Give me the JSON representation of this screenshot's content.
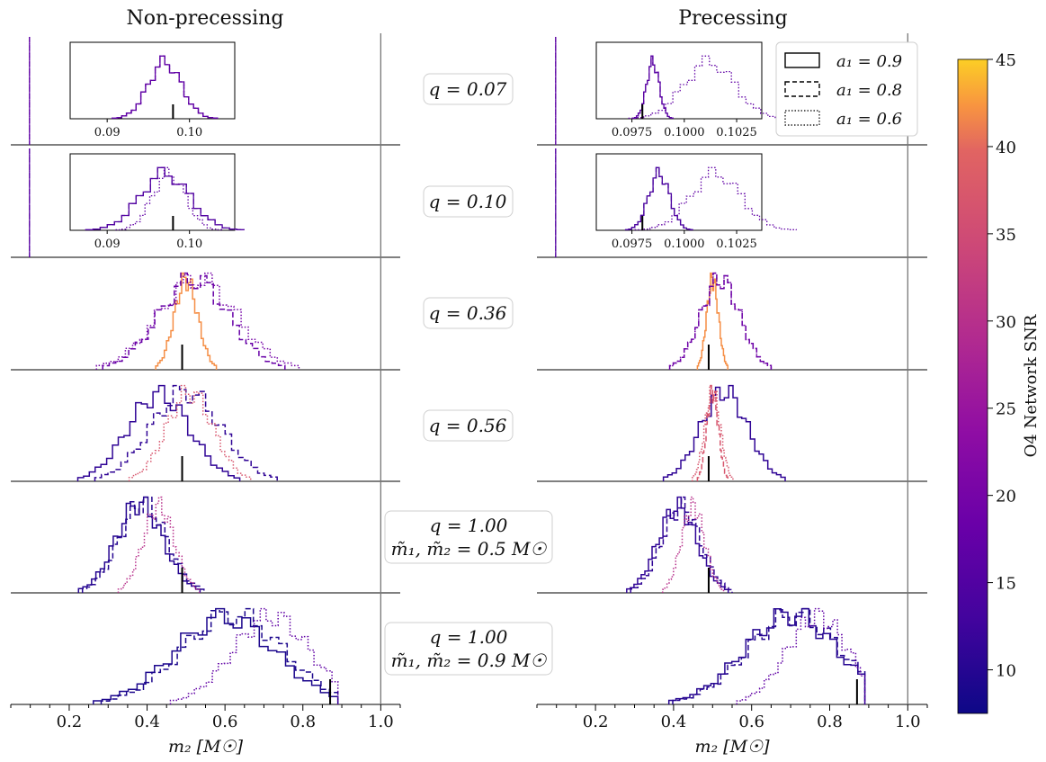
{
  "columns": [
    {
      "title": "Non-precessing"
    },
    {
      "title": "Precessing"
    }
  ],
  "rows": [
    {
      "label_line1": "q = 0.07",
      "label_line2": ""
    },
    {
      "label_line1": "q = 0.10",
      "label_line2": ""
    },
    {
      "label_line1": "q = 0.36",
      "label_line2": ""
    },
    {
      "label_line1": "q = 0.56",
      "label_line2": ""
    },
    {
      "label_line1": "q = 1.00",
      "label_line2": "m̃₁, m̃₂ = 0.5 M☉"
    },
    {
      "label_line1": "q = 1.00",
      "label_line2": "m̃₁, m̃₂ = 0.9 M☉"
    }
  ],
  "legend": {
    "entries": [
      {
        "label": "a₁ = 0.9",
        "dash": "solid"
      },
      {
        "label": "a₁ = 0.8",
        "dash": "dashed"
      },
      {
        "label": "a₁ = 0.6",
        "dash": "dotted"
      }
    ]
  },
  "colorbar": {
    "label": "O4 Network SNR",
    "range": [
      7.5,
      45
    ],
    "ticks": [
      "10",
      "15",
      "20",
      "25",
      "30",
      "35",
      "40",
      "45"
    ],
    "colormap": "plasma"
  },
  "xaxis": {
    "label": "m₂ [M☉]",
    "range": [
      0.05,
      1.05
    ],
    "ticks": [
      "0.2",
      "0.4",
      "0.6",
      "0.8",
      "1.0"
    ]
  },
  "insets": {
    "nonprecessing_ticks": [
      "0.09",
      "0.10"
    ],
    "precessing_ticks": [
      "0.0975",
      "0.1000",
      "0.1025"
    ]
  },
  "chart_data": {
    "type": "histogram-grid",
    "x_unit": "M☉",
    "columns": [
      "Non-precessing",
      "Precessing"
    ],
    "rows": [
      {
        "q": 0.07,
        "true_m2": 0.098,
        "nonprecessing": {
          "a1_0.9": {
            "snr": 17,
            "mean": 0.097,
            "sd": 0.002
          },
          "a1_0.8": {
            "snr": 17,
            "mean": 0.097,
            "sd": 0.002
          },
          "a1_0.6": {
            "snr": 17,
            "mean": 0.097,
            "sd": 0.002
          }
        },
        "precessing": {
          "a1_0.9": {
            "snr": 16,
            "mean": 0.0985,
            "sd": 0.0003
          },
          "a1_0.8": {
            "snr": 16,
            "mean": 0.0985,
            "sd": 0.0003
          },
          "a1_0.6": {
            "snr": 17,
            "mean": 0.1012,
            "sd": 0.0012
          }
        }
      },
      {
        "q": 0.1,
        "true_m2": 0.098,
        "nonprecessing": {
          "a1_0.9": {
            "snr": 15,
            "mean": 0.097,
            "sd": 0.003
          },
          "a1_0.8": {
            "snr": 15,
            "mean": 0.097,
            "sd": 0.003
          },
          "a1_0.6": {
            "snr": 17,
            "mean": 0.0975,
            "sd": 0.002
          }
        },
        "precessing": {
          "a1_0.9": {
            "snr": 14,
            "mean": 0.0988,
            "sd": 0.0005
          },
          "a1_0.8": {
            "snr": 14,
            "mean": 0.0988,
            "sd": 0.0005
          },
          "a1_0.6": {
            "snr": 17,
            "mean": 0.1015,
            "sd": 0.0012
          }
        }
      },
      {
        "q": 0.36,
        "true_m2": 0.49,
        "nonprecessing": {
          "a1_0.9": {
            "snr": 42,
            "mean": 0.5,
            "sd": 0.03
          },
          "a1_0.8": {
            "snr": 18,
            "mean": 0.52,
            "sd": 0.09
          },
          "a1_0.6": {
            "snr": 20,
            "mean": 0.53,
            "sd": 0.1
          }
        },
        "precessing": {
          "a1_0.9": {
            "snr": 42,
            "mean": 0.5,
            "sd": 0.015
          },
          "a1_0.8": {
            "snr": 18,
            "mean": 0.52,
            "sd": 0.05
          },
          "a1_0.6": {
            "snr": 20,
            "mean": 0.52,
            "sd": 0.05
          }
        }
      },
      {
        "q": 0.56,
        "true_m2": 0.49,
        "nonprecessing": {
          "a1_0.9": {
            "snr": 11,
            "mean": 0.43,
            "sd": 0.08
          },
          "a1_0.8": {
            "snr": 11,
            "mean": 0.5,
            "sd": 0.09
          },
          "a1_0.6": {
            "snr": 37,
            "mean": 0.51,
            "sd": 0.06
          }
        },
        "precessing": {
          "a1_0.9": {
            "snr": 11,
            "mean": 0.53,
            "sd": 0.06
          },
          "a1_0.8": {
            "snr": 37,
            "mean": 0.5,
            "sd": 0.015
          },
          "a1_0.6": {
            "snr": 37,
            "mean": 0.5,
            "sd": 0.02
          }
        }
      },
      {
        "q": 1.0,
        "true_m2": 0.49,
        "nonprecessing": {
          "a1_0.9": {
            "snr": 10,
            "mean": 0.38,
            "sd": 0.06
          },
          "a1_0.8": {
            "snr": 10,
            "mean": 0.39,
            "sd": 0.06
          },
          "a1_0.6": {
            "snr": 30,
            "mean": 0.43,
            "sd": 0.04
          }
        },
        "precessing": {
          "a1_0.9": {
            "snr": 11,
            "mean": 0.41,
            "sd": 0.05
          },
          "a1_0.8": {
            "snr": 11,
            "mean": 0.42,
            "sd": 0.05
          },
          "a1_0.6": {
            "snr": 30,
            "mean": 0.45,
            "sd": 0.03
          }
        }
      },
      {
        "q": 1.0,
        "true_m2": 0.87,
        "nonprecessing": {
          "a1_0.9": {
            "snr": 9,
            "mean": 0.6,
            "sd": 0.13
          },
          "a1_0.8": {
            "snr": 9,
            "mean": 0.62,
            "sd": 0.13
          },
          "a1_0.6": {
            "snr": 17,
            "mean": 0.72,
            "sd": 0.1
          }
        },
        "precessing": {
          "a1_0.9": {
            "snr": 10,
            "mean": 0.7,
            "sd": 0.12
          },
          "a1_0.8": {
            "snr": 10,
            "mean": 0.71,
            "sd": 0.12
          },
          "a1_0.6": {
            "snr": 17,
            "mean": 0.77,
            "sd": 0.08
          }
        }
      }
    ]
  }
}
